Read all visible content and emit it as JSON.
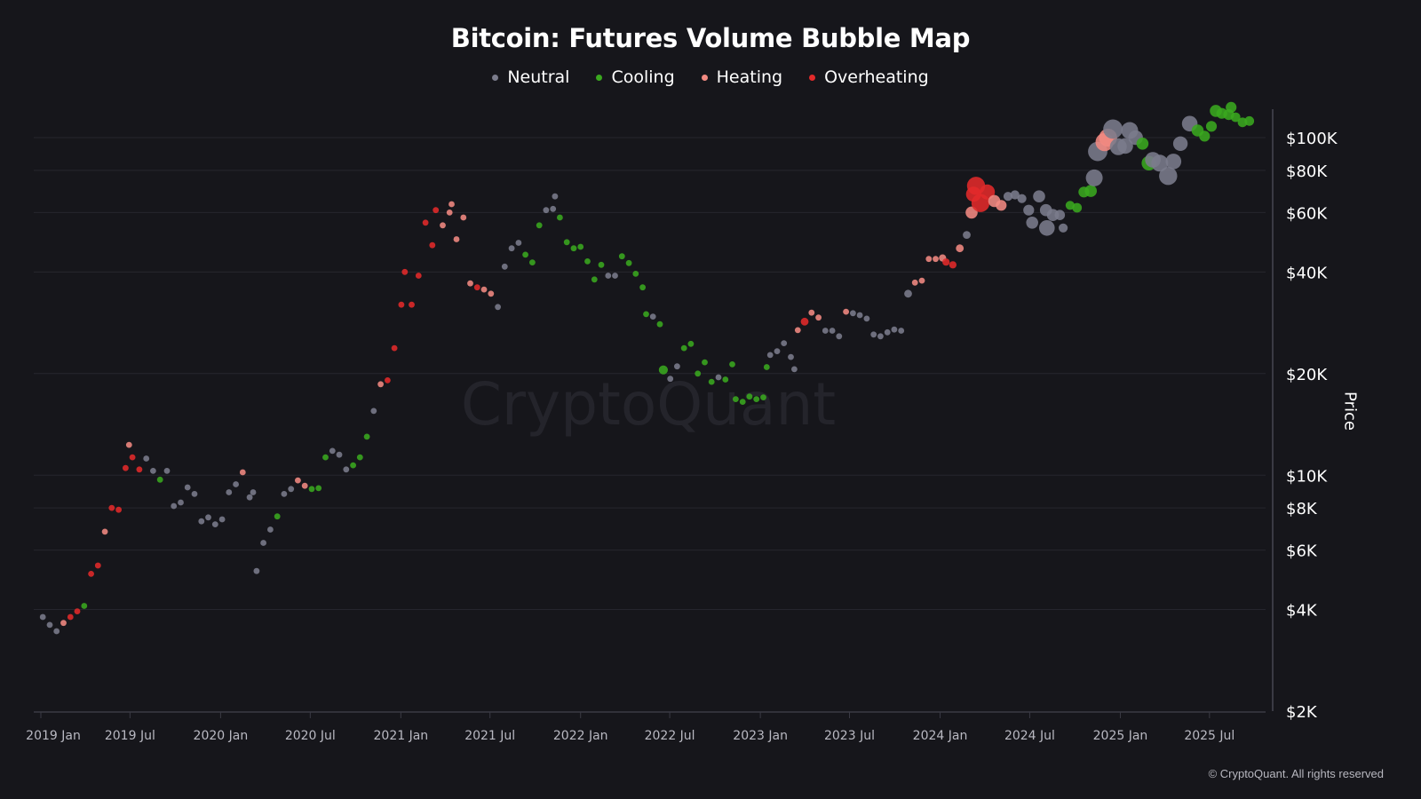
{
  "chart_data": {
    "type": "scatter",
    "title": "Bitcoin: Futures Volume Bubble Map",
    "ylabel": "Price",
    "xlabel": "",
    "y_scale": "log",
    "ylim": [
      2000,
      130000
    ],
    "xlim": [
      "2019-01-01",
      "2025-10-01"
    ],
    "grid": true,
    "legend_position": "top-center",
    "watermark": "CryptoQuant",
    "copyright": "© CryptoQuant. All rights reserved",
    "y_ticks": [
      {
        "value": 2000,
        "label": "$2K"
      },
      {
        "value": 4000,
        "label": "$4K"
      },
      {
        "value": 6000,
        "label": "$6K"
      },
      {
        "value": 8000,
        "label": "$8K"
      },
      {
        "value": 10000,
        "label": "$10K"
      },
      {
        "value": 20000,
        "label": "$20K"
      },
      {
        "value": 40000,
        "label": "$40K"
      },
      {
        "value": 60000,
        "label": "$60K"
      },
      {
        "value": 80000,
        "label": "$80K"
      },
      {
        "value": 100000,
        "label": "$100K"
      }
    ],
    "x_ticks": [
      {
        "date": "2019-01-01",
        "label": "2019 Jan"
      },
      {
        "date": "2019-07-01",
        "label": "2019 Jul"
      },
      {
        "date": "2020-01-01",
        "label": "2020 Jan"
      },
      {
        "date": "2020-07-01",
        "label": "2020 Jul"
      },
      {
        "date": "2021-01-01",
        "label": "2021 Jan"
      },
      {
        "date": "2021-07-01",
        "label": "2021 Jul"
      },
      {
        "date": "2022-01-01",
        "label": "2022 Jan"
      },
      {
        "date": "2022-07-01",
        "label": "2022 Jul"
      },
      {
        "date": "2023-01-01",
        "label": "2023 Jan"
      },
      {
        "date": "2023-07-01",
        "label": "2023 Jul"
      },
      {
        "date": "2024-01-01",
        "label": "2024 Jan"
      },
      {
        "date": "2024-07-01",
        "label": "2024 Jul"
      },
      {
        "date": "2025-01-01",
        "label": "2025 Jan"
      },
      {
        "date": "2025-07-01",
        "label": "2025 Jul"
      }
    ],
    "states": {
      "N": {
        "name": "Neutral",
        "color": "#7b7c8c"
      },
      "C": {
        "name": "Cooling",
        "color": "#3aa81f"
      },
      "H": {
        "name": "Heating",
        "color": "#f28a82"
      },
      "O": {
        "name": "Overheating",
        "color": "#e22a2a"
      }
    },
    "legend_order": [
      "N",
      "C",
      "H",
      "O"
    ],
    "point_fields": [
      "date",
      "price",
      "state",
      "volume_rel"
    ],
    "points": [
      [
        "2019-01-05",
        3800,
        "N",
        1
      ],
      [
        "2019-01-19",
        3600,
        "N",
        1
      ],
      [
        "2019-02-02",
        3450,
        "N",
        1
      ],
      [
        "2019-02-16",
        3650,
        "H",
        1
      ],
      [
        "2019-03-02",
        3800,
        "O",
        1
      ],
      [
        "2019-03-16",
        3950,
        "O",
        1
      ],
      [
        "2019-03-30",
        4100,
        "C",
        1
      ],
      [
        "2019-04-13",
        5100,
        "O",
        1
      ],
      [
        "2019-04-27",
        5400,
        "O",
        1
      ],
      [
        "2019-05-11",
        6800,
        "H",
        1
      ],
      [
        "2019-05-25",
        8000,
        "O",
        1
      ],
      [
        "2019-06-08",
        7900,
        "O",
        1
      ],
      [
        "2019-06-22",
        10500,
        "O",
        1
      ],
      [
        "2019-06-29",
        12300,
        "H",
        1
      ],
      [
        "2019-07-06",
        11300,
        "O",
        1
      ],
      [
        "2019-07-20",
        10400,
        "O",
        1
      ],
      [
        "2019-08-03",
        11200,
        "N",
        1
      ],
      [
        "2019-08-17",
        10300,
        "N",
        1
      ],
      [
        "2019-08-31",
        9700,
        "C",
        1
      ],
      [
        "2019-09-14",
        10300,
        "N",
        1
      ],
      [
        "2019-09-28",
        8100,
        "N",
        1
      ],
      [
        "2019-10-12",
        8300,
        "N",
        1
      ],
      [
        "2019-10-26",
        9200,
        "N",
        1
      ],
      [
        "2019-11-09",
        8800,
        "N",
        1
      ],
      [
        "2019-11-23",
        7300,
        "N",
        1
      ],
      [
        "2019-12-07",
        7500,
        "N",
        1
      ],
      [
        "2019-12-21",
        7150,
        "N",
        1
      ],
      [
        "2020-01-04",
        7400,
        "N",
        1
      ],
      [
        "2020-01-18",
        8900,
        "N",
        1
      ],
      [
        "2020-02-01",
        9400,
        "N",
        1
      ],
      [
        "2020-02-15",
        10200,
        "H",
        1
      ],
      [
        "2020-02-29",
        8600,
        "N",
        1
      ],
      [
        "2020-03-07",
        8900,
        "N",
        1
      ],
      [
        "2020-03-14",
        5200,
        "N",
        1
      ],
      [
        "2020-03-28",
        6300,
        "N",
        1
      ],
      [
        "2020-04-11",
        6900,
        "N",
        1
      ],
      [
        "2020-04-25",
        7550,
        "C",
        1
      ],
      [
        "2020-05-09",
        8800,
        "N",
        1
      ],
      [
        "2020-05-23",
        9100,
        "N",
        1
      ],
      [
        "2020-06-06",
        9650,
        "H",
        1
      ],
      [
        "2020-06-20",
        9300,
        "H",
        1
      ],
      [
        "2020-07-04",
        9100,
        "C",
        1
      ],
      [
        "2020-07-18",
        9150,
        "C",
        1
      ],
      [
        "2020-08-01",
        11300,
        "C",
        1
      ],
      [
        "2020-08-15",
        11800,
        "N",
        1
      ],
      [
        "2020-08-29",
        11500,
        "N",
        1
      ],
      [
        "2020-09-12",
        10400,
        "N",
        1
      ],
      [
        "2020-09-26",
        10700,
        "C",
        1
      ],
      [
        "2020-10-10",
        11300,
        "C",
        1
      ],
      [
        "2020-10-24",
        13000,
        "C",
        1
      ],
      [
        "2020-11-07",
        15500,
        "N",
        1
      ],
      [
        "2020-11-21",
        18600,
        "H",
        1
      ],
      [
        "2020-12-05",
        19100,
        "O",
        1
      ],
      [
        "2020-12-19",
        23800,
        "O",
        1
      ],
      [
        "2021-01-02",
        32000,
        "O",
        1
      ],
      [
        "2021-01-09",
        40000,
        "O",
        1
      ],
      [
        "2021-01-23",
        32000,
        "O",
        1
      ],
      [
        "2021-02-06",
        39000,
        "O",
        1
      ],
      [
        "2021-02-20",
        56000,
        "O",
        1
      ],
      [
        "2021-03-06",
        48000,
        "O",
        1
      ],
      [
        "2021-03-13",
        61000,
        "O",
        1
      ],
      [
        "2021-03-27",
        55000,
        "H",
        1
      ],
      [
        "2021-04-10",
        60000,
        "H",
        1
      ],
      [
        "2021-04-14",
        63500,
        "H",
        1
      ],
      [
        "2021-04-24",
        50000,
        "H",
        1
      ],
      [
        "2021-05-08",
        58000,
        "H",
        1
      ],
      [
        "2021-05-22",
        37000,
        "H",
        1
      ],
      [
        "2021-06-05",
        36000,
        "O",
        1
      ],
      [
        "2021-06-19",
        35500,
        "H",
        1
      ],
      [
        "2021-07-03",
        34500,
        "H",
        1
      ],
      [
        "2021-07-17",
        31500,
        "N",
        1
      ],
      [
        "2021-07-31",
        41500,
        "N",
        1
      ],
      [
        "2021-08-14",
        47000,
        "N",
        1
      ],
      [
        "2021-08-28",
        48800,
        "N",
        1
      ],
      [
        "2021-09-11",
        45000,
        "C",
        1
      ],
      [
        "2021-09-25",
        42700,
        "C",
        1
      ],
      [
        "2021-10-09",
        55000,
        "C",
        1
      ],
      [
        "2021-10-23",
        61000,
        "N",
        1
      ],
      [
        "2021-11-06",
        61500,
        "N",
        1
      ],
      [
        "2021-11-10",
        67000,
        "N",
        1
      ],
      [
        "2021-11-20",
        58000,
        "C",
        1
      ],
      [
        "2021-12-04",
        49000,
        "C",
        1
      ],
      [
        "2021-12-18",
        47000,
        "C",
        1
      ],
      [
        "2022-01-01",
        47500,
        "C",
        1
      ],
      [
        "2022-01-15",
        43000,
        "C",
        1
      ],
      [
        "2022-01-29",
        38000,
        "C",
        1
      ],
      [
        "2022-02-12",
        42000,
        "C",
        1
      ],
      [
        "2022-02-26",
        39000,
        "N",
        1
      ],
      [
        "2022-03-12",
        39000,
        "N",
        1
      ],
      [
        "2022-03-26",
        44500,
        "C",
        1
      ],
      [
        "2022-04-09",
        42500,
        "C",
        1
      ],
      [
        "2022-04-23",
        39500,
        "C",
        1
      ],
      [
        "2022-05-07",
        36000,
        "C",
        1
      ],
      [
        "2022-05-14",
        30000,
        "C",
        1
      ],
      [
        "2022-05-28",
        29500,
        "N",
        1
      ],
      [
        "2022-06-11",
        28000,
        "C",
        1
      ],
      [
        "2022-06-18",
        20500,
        "C",
        1.5
      ],
      [
        "2022-07-02",
        19300,
        "N",
        1
      ],
      [
        "2022-07-16",
        21000,
        "N",
        1
      ],
      [
        "2022-07-30",
        23800,
        "C",
        1
      ],
      [
        "2022-08-13",
        24500,
        "C",
        1
      ],
      [
        "2022-08-27",
        20000,
        "C",
        1
      ],
      [
        "2022-09-10",
        21600,
        "C",
        1
      ],
      [
        "2022-09-24",
        18900,
        "C",
        1
      ],
      [
        "2022-10-08",
        19500,
        "N",
        1
      ],
      [
        "2022-10-22",
        19200,
        "C",
        1
      ],
      [
        "2022-11-05",
        21300,
        "C",
        1
      ],
      [
        "2022-11-12",
        16800,
        "C",
        1
      ],
      [
        "2022-11-26",
        16500,
        "C",
        1
      ],
      [
        "2022-12-10",
        17100,
        "C",
        1
      ],
      [
        "2022-12-24",
        16800,
        "C",
        1
      ],
      [
        "2023-01-07",
        17000,
        "C",
        1
      ],
      [
        "2023-01-14",
        20900,
        "C",
        1
      ],
      [
        "2023-01-21",
        22700,
        "N",
        1
      ],
      [
        "2023-02-04",
        23300,
        "N",
        1
      ],
      [
        "2023-02-18",
        24600,
        "N",
        1
      ],
      [
        "2023-03-04",
        22400,
        "N",
        1
      ],
      [
        "2023-03-11",
        20600,
        "N",
        1
      ],
      [
        "2023-03-18",
        26900,
        "H",
        1
      ],
      [
        "2023-04-01",
        28500,
        "O",
        1.3
      ],
      [
        "2023-04-15",
        30300,
        "H",
        1
      ],
      [
        "2023-04-29",
        29300,
        "H",
        1
      ],
      [
        "2023-05-13",
        26800,
        "N",
        1
      ],
      [
        "2023-05-27",
        26800,
        "N",
        1
      ],
      [
        "2023-06-10",
        25800,
        "N",
        1
      ],
      [
        "2023-06-24",
        30500,
        "H",
        1
      ],
      [
        "2023-07-08",
        30200,
        "N",
        1
      ],
      [
        "2023-07-22",
        29800,
        "N",
        1
      ],
      [
        "2023-08-05",
        29100,
        "N",
        1
      ],
      [
        "2023-08-19",
        26100,
        "N",
        1
      ],
      [
        "2023-09-02",
        25800,
        "N",
        1
      ],
      [
        "2023-09-16",
        26500,
        "N",
        1
      ],
      [
        "2023-09-30",
        27000,
        "N",
        1
      ],
      [
        "2023-10-14",
        26800,
        "N",
        1
      ],
      [
        "2023-10-28",
        34500,
        "N",
        1.3
      ],
      [
        "2023-11-11",
        37200,
        "H",
        1
      ],
      [
        "2023-11-25",
        37700,
        "H",
        1
      ],
      [
        "2023-12-09",
        43700,
        "H",
        1
      ],
      [
        "2023-12-23",
        43700,
        "H",
        1
      ],
      [
        "2024-01-06",
        44000,
        "H",
        1.2
      ],
      [
        "2024-01-13",
        42800,
        "O",
        1.2
      ],
      [
        "2024-01-27",
        42000,
        "O",
        1.2
      ],
      [
        "2024-02-10",
        47000,
        "H",
        1.3
      ],
      [
        "2024-02-24",
        51500,
        "N",
        1.3
      ],
      [
        "2024-03-05",
        60000,
        "H",
        2
      ],
      [
        "2024-03-09",
        68000,
        "O",
        2.5
      ],
      [
        "2024-03-14",
        72000,
        "O",
        3
      ],
      [
        "2024-03-23",
        64000,
        "O",
        3
      ],
      [
        "2024-04-06",
        69000,
        "O",
        2.5
      ],
      [
        "2024-04-20",
        64900,
        "H",
        2
      ],
      [
        "2024-05-04",
        63000,
        "H",
        1.8
      ],
      [
        "2024-05-18",
        67000,
        "N",
        1.5
      ],
      [
        "2024-06-01",
        67700,
        "N",
        1.5
      ],
      [
        "2024-06-15",
        66000,
        "N",
        1.5
      ],
      [
        "2024-06-29",
        61000,
        "N",
        1.8
      ],
      [
        "2024-07-06",
        56000,
        "N",
        2
      ],
      [
        "2024-07-20",
        67000,
        "N",
        2
      ],
      [
        "2024-08-03",
        61000,
        "N",
        2
      ],
      [
        "2024-08-05",
        54000,
        "N",
        2.6
      ],
      [
        "2024-08-17",
        59000,
        "N",
        2
      ],
      [
        "2024-08-31",
        59000,
        "N",
        1.7
      ],
      [
        "2024-09-07",
        54000,
        "N",
        1.5
      ],
      [
        "2024-09-21",
        63000,
        "C",
        1.5
      ],
      [
        "2024-10-05",
        62000,
        "C",
        1.6
      ],
      [
        "2024-10-19",
        69000,
        "C",
        1.8
      ],
      [
        "2024-11-02",
        69500,
        "C",
        2
      ],
      [
        "2024-11-09",
        76000,
        "N",
        2.8
      ],
      [
        "2024-11-16",
        91000,
        "N",
        3.2
      ],
      [
        "2024-11-30",
        97000,
        "H",
        3
      ],
      [
        "2024-12-07",
        100000,
        "H",
        3
      ],
      [
        "2024-12-17",
        106000,
        "N",
        3.2
      ],
      [
        "2024-12-28",
        94000,
        "N",
        2.8
      ],
      [
        "2025-01-11",
        94500,
        "N",
        2.6
      ],
      [
        "2025-01-20",
        105000,
        "N",
        2.8
      ],
      [
        "2025-02-01",
        100000,
        "N",
        2.4
      ],
      [
        "2025-02-15",
        96000,
        "C",
        2
      ],
      [
        "2025-02-28",
        84000,
        "C",
        2.4
      ],
      [
        "2025-03-08",
        86000,
        "N",
        2.6
      ],
      [
        "2025-03-22",
        84000,
        "N",
        2.8
      ],
      [
        "2025-04-08",
        77000,
        "N",
        3
      ],
      [
        "2025-04-19",
        85000,
        "N",
        2.6
      ],
      [
        "2025-05-03",
        96000,
        "N",
        2.4
      ],
      [
        "2025-05-22",
        110000,
        "N",
        2.6
      ],
      [
        "2025-06-07",
        105000,
        "C",
        2
      ],
      [
        "2025-06-21",
        101000,
        "C",
        1.8
      ],
      [
        "2025-07-05",
        108000,
        "C",
        1.8
      ],
      [
        "2025-07-14",
        120000,
        "C",
        2
      ],
      [
        "2025-07-26",
        118000,
        "C",
        1.8
      ],
      [
        "2025-08-09",
        117000,
        "C",
        1.8
      ],
      [
        "2025-08-14",
        123000,
        "C",
        1.8
      ],
      [
        "2025-08-23",
        115000,
        "C",
        1.6
      ],
      [
        "2025-09-06",
        111000,
        "C",
        1.6
      ],
      [
        "2025-09-20",
        112000,
        "C",
        1.6
      ]
    ]
  }
}
